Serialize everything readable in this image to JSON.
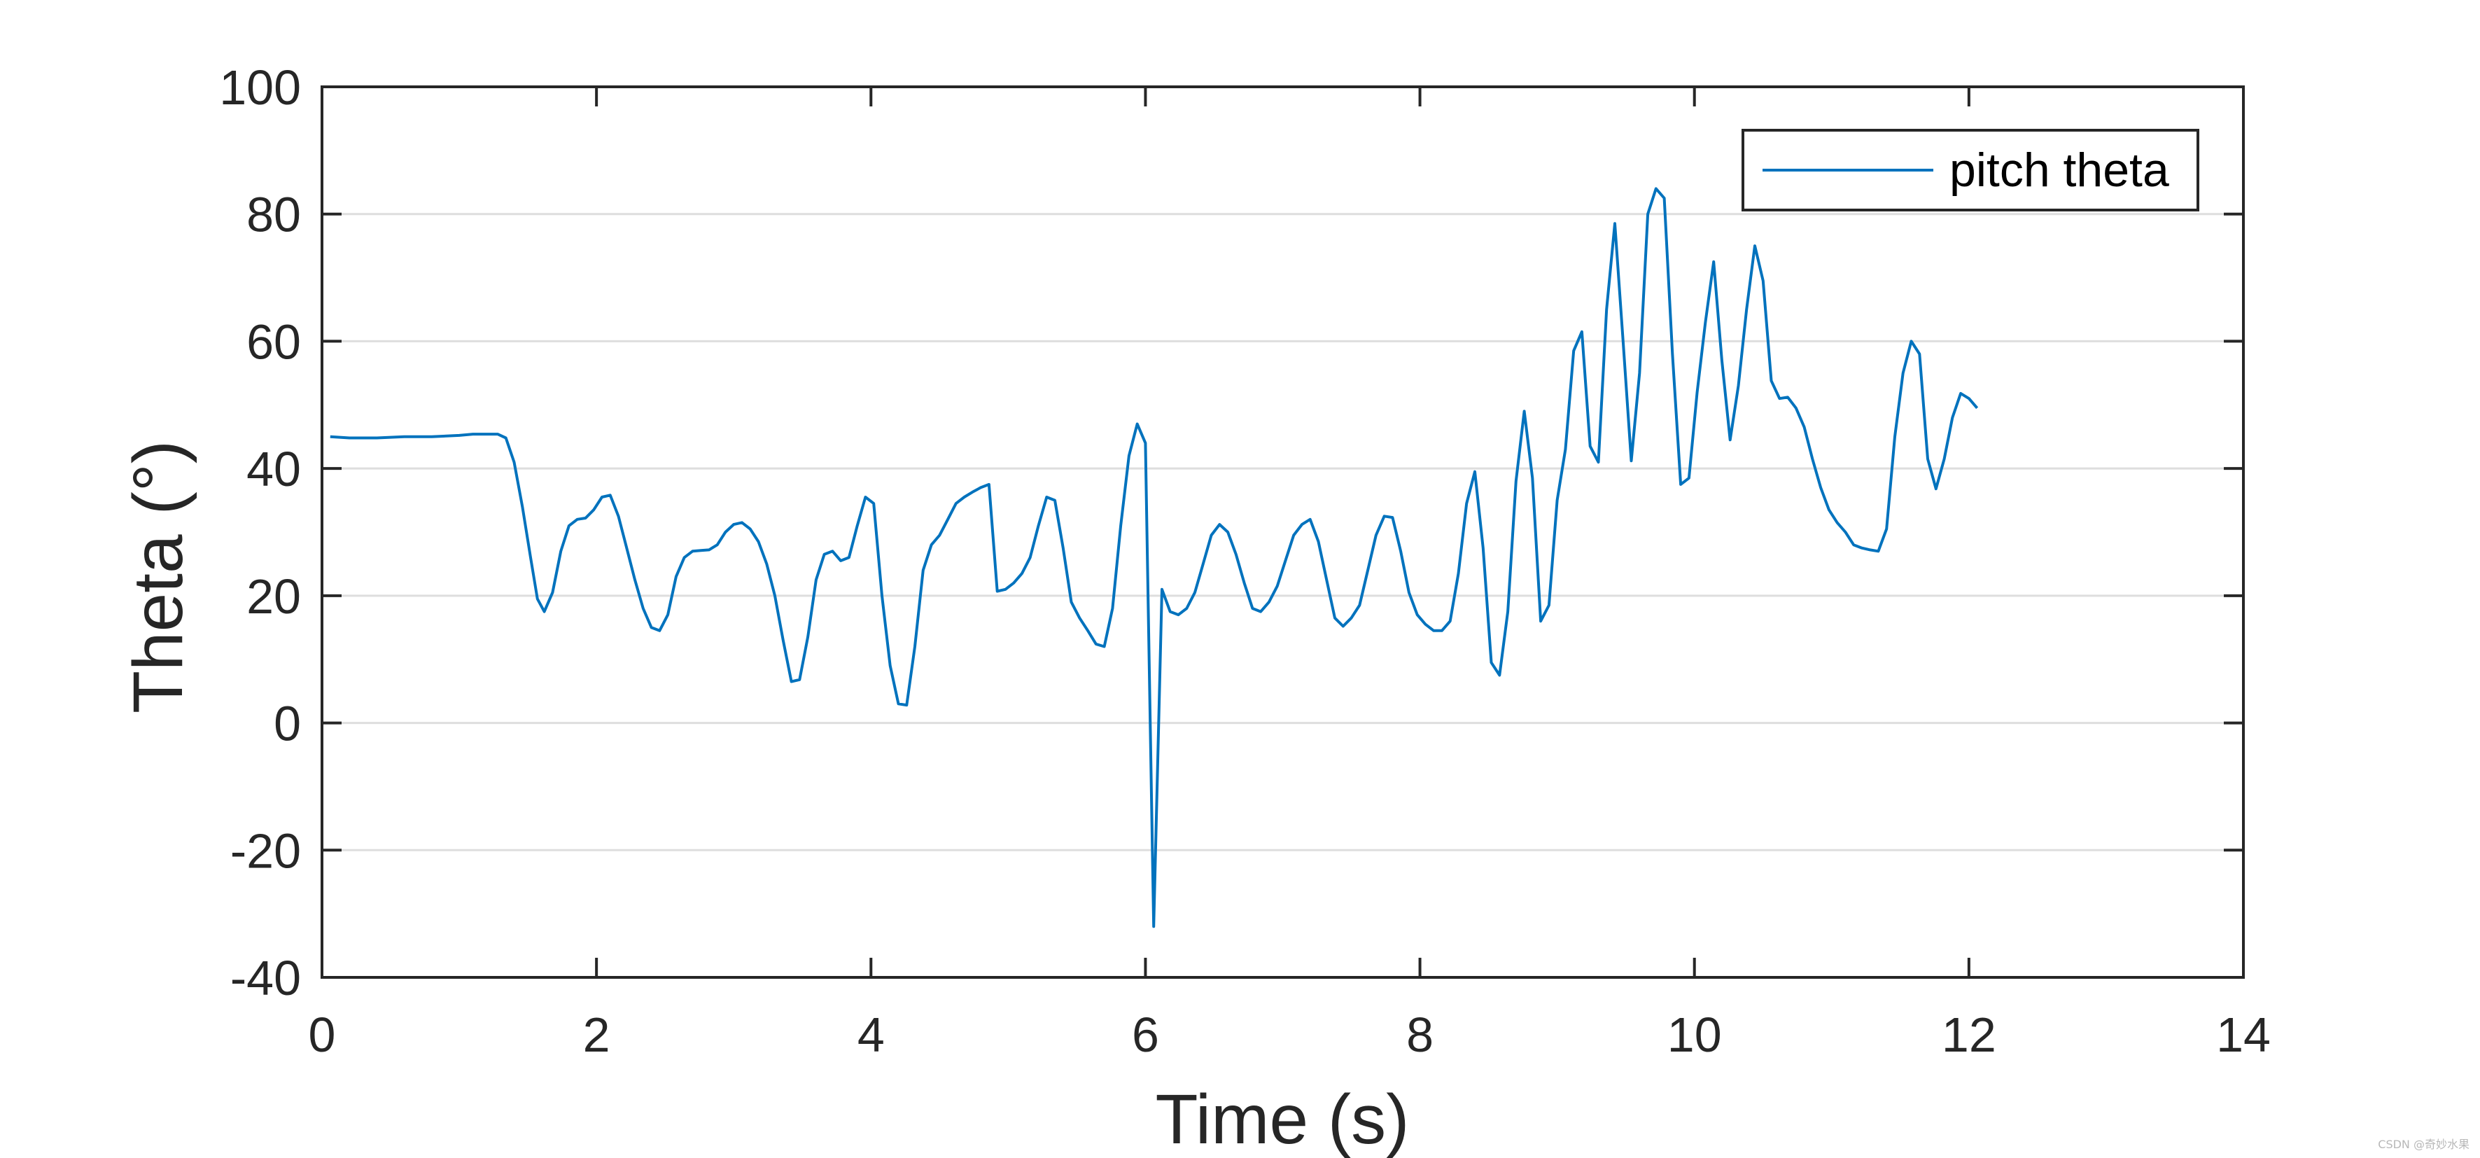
{
  "chart_data": {
    "type": "line",
    "xlabel": "Time (s)",
    "ylabel": "Theta (°)",
    "xlim": [
      0,
      14
    ],
    "ylim": [
      -40,
      100
    ],
    "xticks": [
      0,
      2,
      4,
      6,
      8,
      10,
      12,
      14
    ],
    "yticks": [
      -40,
      -20,
      0,
      20,
      40,
      60,
      80,
      100
    ],
    "grid": "horizontal",
    "legend_position": "top-right",
    "series": [
      {
        "name": "pitch theta",
        "color": "#0072BD",
        "x": [
          0.06,
          0.2,
          0.4,
          0.6,
          0.8,
          1.0,
          1.1,
          1.28,
          1.34,
          1.4,
          1.46,
          1.52,
          1.57,
          1.62,
          1.68,
          1.74,
          1.8,
          1.86,
          1.92,
          1.98,
          2.04,
          2.1,
          2.16,
          2.22,
          2.28,
          2.34,
          2.4,
          2.46,
          2.52,
          2.58,
          2.64,
          2.7,
          2.76,
          2.82,
          2.88,
          2.94,
          3.0,
          3.06,
          3.12,
          3.18,
          3.24,
          3.3,
          3.36,
          3.42,
          3.48,
          3.54,
          3.6,
          3.66,
          3.72,
          3.78,
          3.84,
          3.9,
          3.96,
          4.02,
          4.08,
          4.14,
          4.2,
          4.26,
          4.32,
          4.38,
          4.44,
          4.5,
          4.56,
          4.62,
          4.68,
          4.74,
          4.8,
          4.86,
          4.92,
          4.98,
          5.04,
          5.1,
          5.16,
          5.22,
          5.28,
          5.34,
          5.4,
          5.46,
          5.52,
          5.58,
          5.64,
          5.7,
          5.76,
          5.82,
          5.88,
          5.94,
          6.0,
          6.06,
          6.12,
          6.18,
          6.24,
          6.3,
          6.36,
          6.42,
          6.48,
          6.54,
          6.6,
          6.66,
          6.72,
          6.78,
          6.84,
          6.9,
          6.96,
          7.02,
          7.08,
          7.14,
          7.2,
          7.26,
          7.32,
          7.38,
          7.44,
          7.5,
          7.56,
          7.62,
          7.68,
          7.74,
          7.8,
          7.86,
          7.92,
          7.98,
          8.04,
          8.1,
          8.16,
          8.22,
          8.28,
          8.34,
          8.4,
          8.46,
          8.52,
          8.58,
          8.64,
          8.7,
          8.76,
          8.82,
          8.88,
          8.94,
          9.0,
          9.06,
          9.12,
          9.18,
          9.24,
          9.3,
          9.36,
          9.42,
          9.48,
          9.54,
          9.6,
          9.66,
          9.72,
          9.78,
          9.84,
          9.9,
          9.96,
          10.02,
          10.08,
          10.14,
          10.2,
          10.26,
          10.32,
          10.38,
          10.44,
          10.5,
          10.56,
          10.62,
          10.68,
          10.74,
          10.8,
          10.86,
          10.92,
          10.98,
          11.04,
          11.1,
          11.16,
          11.22,
          11.28,
          11.34,
          11.4,
          11.46,
          11.52,
          11.58,
          11.64,
          11.7,
          11.76,
          11.82,
          11.88,
          11.94,
          12.0,
          12.06
        ],
        "y": [
          45,
          44.8,
          44.8,
          45,
          45,
          45.2,
          45.4,
          45.4,
          44.8,
          41,
          34,
          26,
          19.5,
          17.5,
          20.5,
          27,
          31,
          32,
          32.2,
          33.5,
          35.5,
          35.8,
          32.5,
          27.5,
          22.5,
          18,
          15,
          14.5,
          17,
          23,
          26,
          27,
          27.1,
          27.2,
          28,
          30,
          31.2,
          31.5,
          30.5,
          28.5,
          25,
          20,
          13,
          6.5,
          6.8,
          13.5,
          22.5,
          26.5,
          27,
          25.5,
          26,
          31,
          35.5,
          34.5,
          20,
          9,
          3,
          2.8,
          12,
          24,
          28,
          29.5,
          32,
          34.5,
          35.5,
          36.3,
          37,
          37.5,
          20.7,
          21,
          22,
          23.5,
          26,
          31,
          35.5,
          35,
          27.5,
          19,
          16.5,
          14.5,
          12.4,
          12,
          18,
          31,
          42,
          47,
          44,
          -32,
          21,
          17.5,
          17,
          18,
          20.5,
          25,
          29.5,
          31.2,
          30,
          26.5,
          22,
          18,
          17.5,
          19,
          21.5,
          25.5,
          29.5,
          31.2,
          32,
          28.5,
          22.5,
          16.5,
          15.2,
          16.5,
          18.5,
          24,
          29.5,
          32.5,
          32.3,
          27,
          20.5,
          17,
          15.5,
          14.5,
          14.5,
          16,
          23.5,
          34.5,
          39.5,
          27.5,
          9.5,
          7.5,
          17.5,
          38,
          49,
          38.5,
          16,
          18.5,
          35,
          43,
          58.5,
          61.5,
          43.5,
          41,
          65,
          78.5,
          60,
          41.2,
          55,
          80,
          84,
          82.5,
          58,
          37.5,
          38.5,
          52,
          63,
          72.5,
          57,
          44.5,
          53,
          65,
          75,
          69.5,
          53.8,
          51,
          51.2,
          49.5,
          46.5,
          41.5,
          37,
          33.5,
          31.5,
          30,
          28,
          27.5,
          27.2,
          27,
          30.5,
          45,
          55,
          60,
          58,
          41.5,
          36.8,
          41.5,
          48,
          51.8,
          51,
          49.5
        ]
      }
    ]
  },
  "watermark": "CSDN @奇妙水果"
}
